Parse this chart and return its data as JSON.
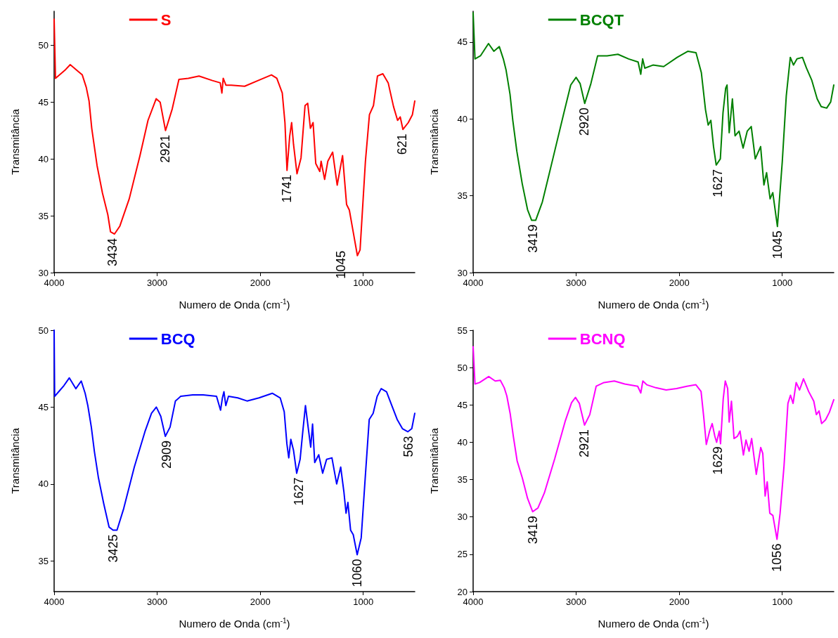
{
  "chart_data": [
    {
      "type": "line",
      "xlabel": "Numero de Onda (cm$^{-1}$)",
      "ylabel": "Transmitância",
      "xlim": [
        4000,
        500
      ],
      "xticks": [
        4000,
        3000,
        2000,
        1000
      ],
      "ylim": [
        30,
        53
      ],
      "yticks": [
        30,
        35,
        40,
        45,
        50
      ],
      "grid": false,
      "legend": "top left",
      "marker": "none",
      "line_style": "solid",
      "series": [
        {
          "name": "S",
          "color": "#ff0000",
          "x": [
            4000,
            3987,
            3896,
            3844,
            3766,
            3727,
            3688,
            3661,
            3635,
            3583,
            3531,
            3479,
            3453,
            3414,
            3362,
            3271,
            3167,
            3089,
            3010,
            2971,
            2919,
            2854,
            2789,
            2698,
            2594,
            2464,
            2388,
            2372,
            2359,
            2333,
            2281,
            2151,
            2021,
            1891,
            1839,
            1786,
            1760,
            1740,
            1714,
            1695,
            1677,
            1643,
            1604,
            1565,
            1539,
            1513,
            1487,
            1461,
            1422,
            1409,
            1375,
            1344,
            1297,
            1253,
            1201,
            1162,
            1135,
            1096,
            1057,
            1031,
            979,
            940,
            901,
            862,
            810,
            758,
            706,
            667,
            641,
            615,
            563,
            523,
            500
          ],
          "values": [
            52.3,
            47.1,
            47.8,
            48.3,
            47.7,
            47.4,
            46.3,
            45.1,
            42.7,
            39.4,
            37.0,
            35.1,
            33.6,
            33.4,
            34.1,
            36.5,
            40.3,
            43.4,
            45.3,
            45.0,
            42.5,
            44.4,
            47.0,
            47.1,
            47.3,
            46.9,
            46.7,
            45.8,
            47.1,
            46.5,
            46.5,
            46.4,
            46.9,
            47.4,
            47.1,
            45.8,
            43.2,
            39.0,
            42.0,
            43.2,
            41.3,
            38.7,
            40.1,
            44.7,
            44.9,
            42.7,
            43.2,
            39.6,
            38.9,
            39.8,
            38.2,
            39.8,
            40.6,
            37.7,
            40.3,
            36.0,
            35.5,
            33.5,
            31.5,
            32.0,
            39.8,
            43.9,
            44.7,
            47.3,
            47.5,
            46.7,
            44.6,
            43.4,
            43.7,
            42.6,
            43.2,
            43.9,
            45.1
          ]
        }
      ],
      "annotations": [
        {
          "text": "3434",
          "x": 3434,
          "y": 33.4
        },
        {
          "text": "2921",
          "x": 2921,
          "y": 42.5
        },
        {
          "text": "1741",
          "x": 1741,
          "y": 39.0
        },
        {
          "text": "1045",
          "x": 1045,
          "y": 31.5
        },
        {
          "text": "621",
          "x": 621,
          "y": 42.6
        }
      ]
    },
    {
      "type": "line",
      "xlabel": "Numero de Onda (cm$^{-1}$)",
      "ylabel": "Transmitância",
      "xlim": [
        4000,
        500
      ],
      "xticks": [
        4000,
        3000,
        2000,
        1000
      ],
      "ylim": [
        30,
        47
      ],
      "yticks": [
        30,
        35,
        40,
        45
      ],
      "grid": false,
      "legend": "top left",
      "marker": "none",
      "line_style": "solid",
      "series": [
        {
          "name": "BCQT",
          "color": "#008000",
          "x": [
            4000,
            3982,
            3929,
            3851,
            3799,
            3746,
            3707,
            3681,
            3642,
            3615,
            3576,
            3524,
            3472,
            3432,
            3393,
            3328,
            3223,
            3119,
            3053,
            3001,
            2962,
            2917,
            2857,
            2792,
            2700,
            2595,
            2491,
            2399,
            2373,
            2355,
            2334,
            2255,
            2151,
            2020,
            1915,
            1837,
            1785,
            1745,
            1719,
            1693,
            1667,
            1641,
            1601,
            1575,
            1549,
            1536,
            1515,
            1484,
            1458,
            1419,
            1380,
            1340,
            1301,
            1262,
            1210,
            1178,
            1152,
            1118,
            1092,
            1047,
            1000,
            961,
            922,
            891,
            857,
            804,
            765,
            713,
            661,
            622,
            569,
            530,
            500
          ],
          "values": [
            46.9,
            43.9,
            44.1,
            44.9,
            44.4,
            44.7,
            43.9,
            43.2,
            41.6,
            39.9,
            37.9,
            35.8,
            34.1,
            33.4,
            33.4,
            34.6,
            37.5,
            40.4,
            42.2,
            42.7,
            42.3,
            41.0,
            42.3,
            44.1,
            44.1,
            44.2,
            43.9,
            43.7,
            42.9,
            43.9,
            43.3,
            43.5,
            43.4,
            44.0,
            44.4,
            44.3,
            43.0,
            40.6,
            39.6,
            39.9,
            38.2,
            37.0,
            37.4,
            40.4,
            42.0,
            42.2,
            39.1,
            41.3,
            38.9,
            39.2,
            38.1,
            39.2,
            39.5,
            37.4,
            38.2,
            35.7,
            36.5,
            34.8,
            35.2,
            33.0,
            37.2,
            41.5,
            44.0,
            43.5,
            43.9,
            44.0,
            43.3,
            42.5,
            41.3,
            40.8,
            40.7,
            41.1,
            42.2
          ]
        }
      ],
      "annotations": [
        {
          "text": "3419",
          "x": 3419,
          "y": 33.4
        },
        {
          "text": "2920",
          "x": 2920,
          "y": 41.0
        },
        {
          "text": "1627",
          "x": 1627,
          "y": 37.0
        },
        {
          "text": "1045",
          "x": 1045,
          "y": 33.0
        }
      ]
    },
    {
      "type": "line",
      "xlabel": "Numero de Onda (cm$^{-1}$)",
      "ylabel": "Transmitância",
      "xlim": [
        4000,
        500
      ],
      "xticks": [
        4000,
        3000,
        2000,
        1000
      ],
      "ylim": [
        33,
        50
      ],
      "yticks": [
        35,
        40,
        45,
        50
      ],
      "grid": false,
      "legend": "top left",
      "marker": "none",
      "line_style": "solid",
      "series": [
        {
          "name": "BCQ",
          "color": "#0000ff",
          "x": [
            4000,
            3995,
            3956,
            3905,
            3853,
            3789,
            3737,
            3699,
            3673,
            3639,
            3609,
            3570,
            3518,
            3467,
            3428,
            3390,
            3325,
            3222,
            3119,
            3055,
            3008,
            2965,
            2921,
            2875,
            2823,
            2772,
            2656,
            2553,
            2424,
            2385,
            2367,
            2352,
            2334,
            2308,
            2218,
            2128,
            2012,
            1883,
            1806,
            1767,
            1741,
            1723,
            1703,
            1677,
            1646,
            1613,
            1587,
            1561,
            1535,
            1510,
            1492,
            1471,
            1432,
            1394,
            1356,
            1304,
            1258,
            1219,
            1188,
            1167,
            1149,
            1123,
            1097,
            1059,
            1020,
            981,
            942,
            904,
            865,
            826,
            774,
            723,
            671,
            620,
            568,
            529,
            500
          ],
          "values": [
            50.0,
            45.7,
            46.0,
            46.4,
            46.9,
            46.2,
            46.7,
            45.9,
            45.1,
            43.7,
            42.1,
            40.4,
            38.7,
            37.2,
            37.0,
            37.0,
            38.4,
            41.1,
            43.4,
            44.6,
            45.0,
            44.4,
            43.1,
            43.7,
            45.4,
            45.7,
            45.8,
            45.8,
            45.7,
            44.8,
            45.6,
            46.0,
            45.1,
            45.7,
            45.6,
            45.4,
            45.6,
            45.9,
            45.6,
            44.7,
            42.6,
            41.7,
            42.9,
            42.2,
            40.7,
            41.6,
            43.4,
            45.1,
            43.7,
            42.4,
            43.9,
            41.4,
            41.9,
            40.7,
            41.6,
            41.7,
            40.0,
            41.1,
            39.5,
            38.1,
            38.8,
            37.0,
            36.7,
            35.4,
            36.5,
            40.4,
            44.2,
            44.6,
            45.7,
            46.2,
            46.0,
            45.1,
            44.2,
            43.6,
            43.4,
            43.6,
            44.6
          ]
        }
      ],
      "annotations": [
        {
          "text": "3425",
          "x": 3425,
          "y": 37.0
        },
        {
          "text": "2909",
          "x": 2909,
          "y": 43.1
        },
        {
          "text": "1627",
          "x": 1627,
          "y": 40.7
        },
        {
          "text": "1060",
          "x": 1060,
          "y": 35.4
        },
        {
          "text": "563",
          "x": 563,
          "y": 43.4
        }
      ]
    },
    {
      "type": "line",
      "xlabel": "Numero de Onda (cm$^{-1}$)",
      "ylabel": "Transmitância",
      "xlim": [
        4000,
        500
      ],
      "xticks": [
        4000,
        3000,
        2000,
        1000
      ],
      "ylim": [
        20,
        55
      ],
      "yticks": [
        20,
        25,
        30,
        35,
        40,
        45,
        50,
        55
      ],
      "grid": false,
      "legend": "top left",
      "marker": "none",
      "line_style": "solid",
      "series": [
        {
          "name": "BCNQ",
          "color": "#ff00ff",
          "x": [
            4000,
            3982,
            3937,
            3849,
            3786,
            3736,
            3698,
            3673,
            3640,
            3610,
            3573,
            3522,
            3472,
            3422,
            3371,
            3309,
            3208,
            3107,
            3045,
            3007,
            2969,
            2919,
            2868,
            2806,
            2730,
            2630,
            2529,
            2403,
            2373,
            2353,
            2315,
            2227,
            2127,
            2026,
            1926,
            1838,
            1788,
            1763,
            1737,
            1705,
            1680,
            1654,
            1637,
            1611,
            1599,
            1573,
            1553,
            1530,
            1515,
            1493,
            1468,
            1435,
            1410,
            1377,
            1352,
            1322,
            1297,
            1252,
            1209,
            1189,
            1166,
            1146,
            1121,
            1091,
            1051,
            1021,
            983,
            945,
            920,
            895,
            865,
            832,
            794,
            744,
            694,
            669,
            643,
            618,
            580,
            543,
            500
          ],
          "values": [
            52.8,
            47.8,
            48.0,
            48.8,
            48.2,
            48.3,
            47.3,
            46.2,
            43.8,
            40.8,
            37.5,
            35.2,
            32.5,
            30.7,
            31.2,
            33.2,
            37.8,
            42.8,
            45.3,
            46.0,
            45.2,
            42.3,
            43.7,
            47.5,
            48.0,
            48.2,
            47.8,
            47.5,
            46.6,
            48.2,
            47.7,
            47.3,
            47.0,
            47.2,
            47.5,
            47.7,
            46.8,
            43.5,
            39.7,
            41.5,
            42.5,
            40.8,
            40.0,
            41.5,
            39.8,
            45.8,
            48.2,
            47.2,
            42.7,
            45.5,
            40.5,
            40.8,
            41.5,
            38.3,
            40.3,
            38.8,
            40.5,
            35.7,
            39.3,
            38.5,
            32.8,
            34.7,
            30.5,
            30.2,
            27.0,
            30.5,
            36.8,
            45.2,
            46.3,
            45.2,
            48.0,
            47.0,
            48.5,
            46.8,
            45.5,
            43.7,
            44.2,
            42.5,
            43.0,
            44.0,
            45.7
          ]
        }
      ],
      "annotations": [
        {
          "text": "3419",
          "x": 3419,
          "y": 30.7
        },
        {
          "text": "2921",
          "x": 2921,
          "y": 42.3
        },
        {
          "text": "1629",
          "x": 1629,
          "y": 40.0
        },
        {
          "text": "1056",
          "x": 1056,
          "y": 27.0
        }
      ]
    }
  ]
}
